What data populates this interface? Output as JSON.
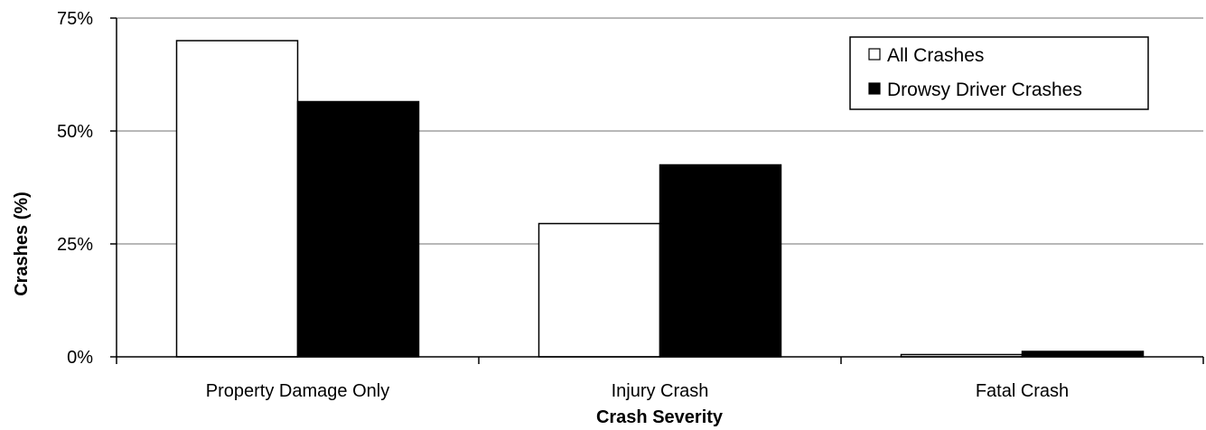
{
  "chart_data": {
    "type": "bar",
    "title": "",
    "xlabel": "Crash Severity",
    "ylabel": "Crashes (%)",
    "categories": [
      "Property Damage Only",
      "Injury Crash",
      "Fatal Crash"
    ],
    "series": [
      {
        "name": "All Crashes",
        "values": [
          70,
          29.5,
          0.5
        ],
        "color": "#ffffff"
      },
      {
        "name": "Drowsy Driver Crashes",
        "values": [
          56.5,
          42.5,
          1.2
        ],
        "color": "#000000"
      }
    ],
    "ylim": [
      0,
      75
    ],
    "yticks": [
      0,
      25,
      50,
      75
    ],
    "ytick_labels": [
      "0%",
      "25%",
      "50%",
      "75%"
    ],
    "grid": true,
    "legend_position": "top-right"
  }
}
